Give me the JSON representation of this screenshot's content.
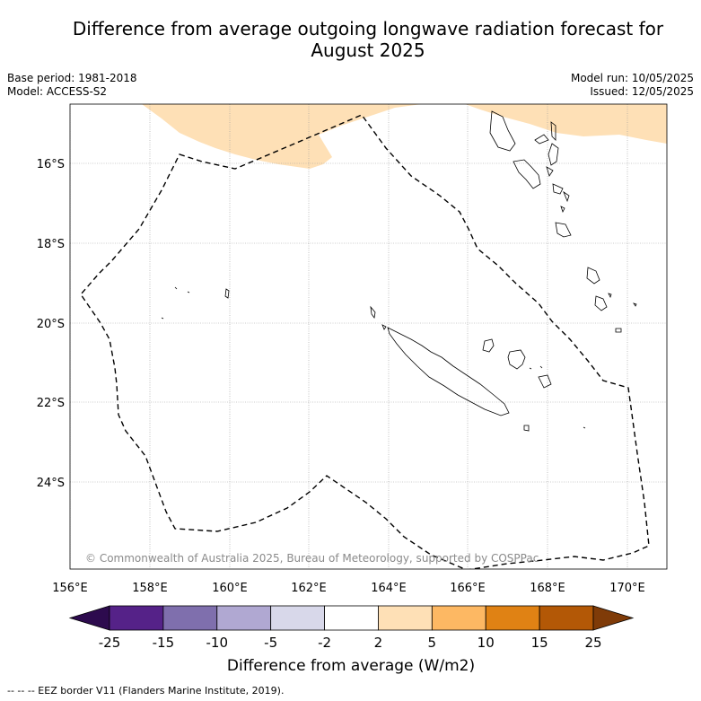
{
  "title_line1": "Difference from average outgoing longwave radiation forecast for",
  "title_line2": "August 2025",
  "base_period": "Base period: 1981-2018",
  "model": "Model: ACCESS-S2",
  "model_run": "Model run: 10/05/2025",
  "issued": "Issued: 12/05/2025",
  "copyright": "© Commonwealth of Australia 2025, Bureau of Meteorology, supported by COSPPac",
  "lon_ticks": [
    "156°E",
    "158°E",
    "160°E",
    "162°E",
    "164°E",
    "166°E",
    "168°E",
    "170°E"
  ],
  "lat_ticks": [
    "16°S",
    "18°S",
    "20°S",
    "22°S",
    "24°S"
  ],
  "colorbar": {
    "title": "Difference from average (W/m2)",
    "tick_labels": [
      "-25",
      "-15",
      "-10",
      "-5",
      "-2",
      "2",
      "5",
      "10",
      "15",
      "25"
    ],
    "colors": [
      "#2d0b4e",
      "#552288",
      "#7f6fad",
      "#b0a8d2",
      "#d8d8ea",
      "#ffffff",
      "#fee0b6",
      "#fdb863",
      "#e08214",
      "#b35806",
      "#7f3b08"
    ]
  },
  "footnote": "--  --  -- EEZ border V11 (Flanders Marine Institute, 2019).",
  "legend_icons": {
    "eez": "dashed-line-icon"
  }
}
